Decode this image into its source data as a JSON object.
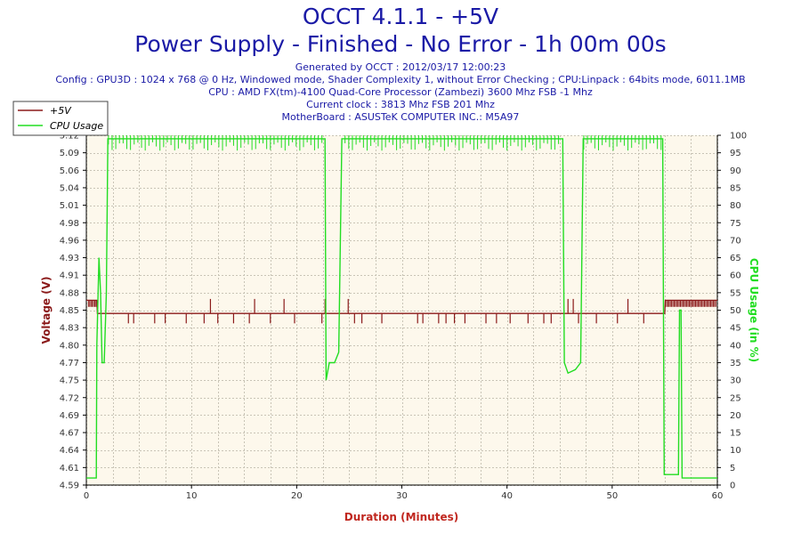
{
  "header": {
    "title": "OCCT 4.1.1 - +5V",
    "subtitle": "Power Supply - Finished - No Error - 1h 00m 00s",
    "info_lines": [
      "Generated by OCCT : 2012/03/17 12:00:23",
      "Config : GPU3D : 1024 x 768 @ 0 Hz, Windowed mode, Shader Complexity 1, without Error Checking ; CPU:Linpack : 64bits mode, 6011.1MB",
      "CPU : AMD FX(tm)-4100 Quad-Core Processor (Zambezi) 3600 Mhz FSB -1 Mhz",
      "Current clock : 3813 Mhz FSB 201 Mhz",
      "MotherBoard : ASUSTeK COMPUTER INC.: M5A97"
    ]
  },
  "colors": {
    "voltage": "#8b1a1a",
    "cpu": "#22dd22",
    "plot_bg": "#fdf8ec",
    "grid": "#c9c4b6",
    "title": "#1a1aa6",
    "xlabel": "#c0271f"
  },
  "chart_data": {
    "type": "line",
    "xlabel": "Duration (Minutes)",
    "ylabel_left": "Voltage (V)",
    "ylabel_right": "CPU Usage (in %)",
    "xlim": [
      0,
      60
    ],
    "ylim_left": [
      4.59,
      5.12
    ],
    "ylim_right": [
      0,
      100
    ],
    "x_ticks": [
      0,
      10,
      20,
      30,
      40,
      50,
      60
    ],
    "y_left_ticks": [
      "4.59",
      "4.61",
      "4.64",
      "4.67",
      "4.69",
      "4.72",
      "4.75",
      "4.77",
      "4.80",
      "4.83",
      "4.85",
      "4.88",
      "4.91",
      "4.93",
      "4.96",
      "4.98",
      "5.01",
      "5.04",
      "5.06",
      "5.09",
      "5.12"
    ],
    "y_right_ticks": [
      0,
      5,
      10,
      15,
      20,
      25,
      30,
      35,
      40,
      45,
      50,
      55,
      60,
      65,
      70,
      75,
      80,
      85,
      90,
      95,
      100
    ],
    "grid": true,
    "legend_position": "top-left",
    "series": [
      {
        "name": "+5V",
        "axis": "left",
        "baseline": 4.85,
        "x": [
          0,
          1,
          1.05,
          3,
          3.05,
          55,
          55.05,
          60
        ],
        "y": [
          4.87,
          4.87,
          4.85,
          4.85,
          4.85,
          4.85,
          4.87,
          4.87
        ],
        "dips": [
          4,
          4.5,
          6.5,
          7.5,
          9.5,
          11.2,
          12.5,
          14,
          15.5,
          17.5,
          19.8,
          22.4,
          25.5,
          26.2,
          28.1,
          31.5,
          32,
          33.5,
          34.2,
          35,
          36,
          38,
          39,
          40.3,
          42,
          43.5,
          44.2,
          46.8,
          48.5,
          50.5,
          53
        ],
        "spikes": [
          11.8,
          16,
          18.8,
          22.7,
          24.9,
          45.8,
          46.3,
          51.5
        ]
      },
      {
        "name": "CPU Usage",
        "axis": "right",
        "x": [
          0,
          0.95,
          1.0,
          1.2,
          1.35,
          1.5,
          1.7,
          1.9,
          2.05,
          22.7,
          22.8,
          23.1,
          23.6,
          24.0,
          24.3,
          24.5,
          45.3,
          45.45,
          45.8,
          46.5,
          47.0,
          47.25,
          54.8,
          54.95,
          56.3,
          56.4,
          56.55,
          56.65,
          60
        ],
        "y": [
          2,
          2,
          40,
          65,
          55,
          35,
          35,
          55,
          99,
          99,
          30,
          35,
          35,
          38,
          99,
          99,
          99,
          35,
          32,
          33,
          35,
          99,
          99,
          3,
          3,
          50,
          50,
          2,
          2
        ]
      }
    ]
  }
}
